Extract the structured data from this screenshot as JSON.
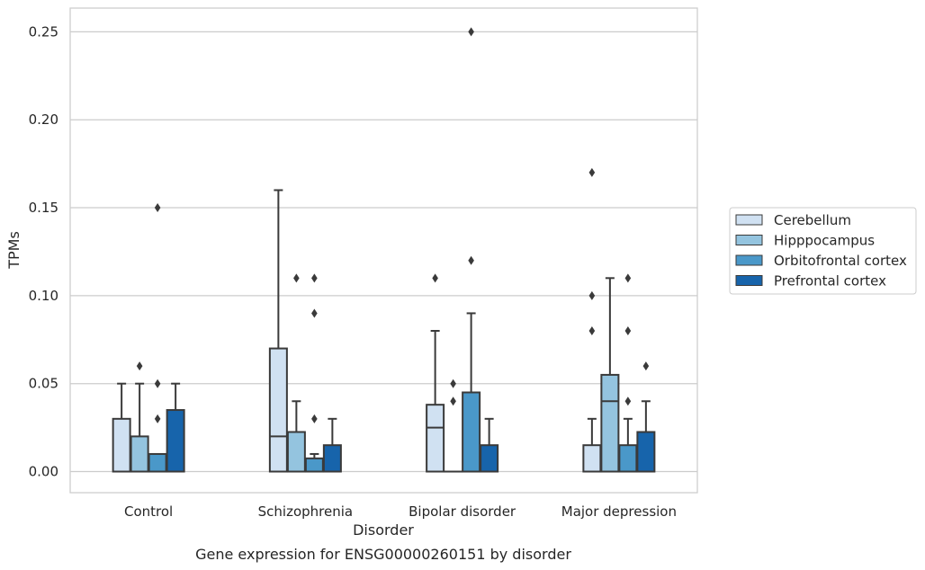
{
  "caption": "Gene expression for ENSG00000260151 by disorder",
  "chart_data": {
    "type": "box",
    "xlabel": "Disorder",
    "ylabel": "TPMs",
    "ylim": [
      -0.012,
      0.2635
    ],
    "yticks": [
      0.0,
      0.05,
      0.1,
      0.15,
      0.2,
      0.25
    ],
    "ytick_labels": [
      "0.00",
      "0.05",
      "0.10",
      "0.15",
      "0.20",
      "0.25"
    ],
    "grid": "horizontal",
    "legend_position": "right",
    "categories": [
      "Control",
      "Schizophrenia",
      "Bipolar disorder",
      "Major depression"
    ],
    "series": [
      {
        "name": "Cerebellum",
        "color": "#d0e1f2",
        "boxes": [
          {
            "q1": 0.0,
            "median": 0.0,
            "q3": 0.03,
            "whisker_low": 0.0,
            "whisker_high": 0.05,
            "outliers": []
          },
          {
            "q1": 0.0,
            "median": 0.02,
            "q3": 0.07,
            "whisker_low": 0.0,
            "whisker_high": 0.16,
            "outliers": []
          },
          {
            "q1": 0.0,
            "median": 0.025,
            "q3": 0.038,
            "whisker_low": 0.0,
            "whisker_high": 0.08,
            "outliers": [
              0.11
            ]
          },
          {
            "q1": 0.0,
            "median": 0.0,
            "q3": 0.015,
            "whisker_low": 0.0,
            "whisker_high": 0.03,
            "outliers": [
              0.08,
              0.1,
              0.17
            ]
          }
        ]
      },
      {
        "name": "Hipppocampus",
        "color": "#94c4df",
        "boxes": [
          {
            "q1": 0.0,
            "median": 0.0,
            "q3": 0.02,
            "whisker_low": 0.0,
            "whisker_high": 0.05,
            "outliers": [
              0.06
            ]
          },
          {
            "q1": 0.0,
            "median": 0.0,
            "q3": 0.0225,
            "whisker_low": 0.0,
            "whisker_high": 0.04,
            "outliers": [
              0.11
            ]
          },
          {
            "q1": 0.0,
            "median": 0.0,
            "q3": 0.0,
            "whisker_low": 0.0,
            "whisker_high": 0.0,
            "outliers": [
              0.04,
              0.05
            ]
          },
          {
            "q1": 0.0,
            "median": 0.04,
            "q3": 0.055,
            "whisker_low": 0.0,
            "whisker_high": 0.11,
            "outliers": []
          }
        ]
      },
      {
        "name": "Orbitofrontal cortex",
        "color": "#4a98c9",
        "boxes": [
          {
            "q1": 0.0,
            "median": 0.0,
            "q3": 0.01,
            "whisker_low": 0.0,
            "whisker_high": 0.01,
            "outliers": [
              0.03,
              0.05,
              0.15
            ]
          },
          {
            "q1": 0.0,
            "median": 0.0,
            "q3": 0.0075,
            "whisker_low": 0.0,
            "whisker_high": 0.01,
            "outliers": [
              0.03,
              0.09,
              0.11
            ]
          },
          {
            "q1": 0.0,
            "median": 0.0,
            "q3": 0.045,
            "whisker_low": 0.0,
            "whisker_high": 0.09,
            "outliers": [
              0.12,
              0.25
            ]
          },
          {
            "q1": 0.0,
            "median": 0.0,
            "q3": 0.015,
            "whisker_low": 0.0,
            "whisker_high": 0.03,
            "outliers": [
              0.04,
              0.08,
              0.11
            ]
          }
        ]
      },
      {
        "name": "Prefrontal cortex",
        "color": "#1764ab",
        "boxes": [
          {
            "q1": 0.0,
            "median": 0.0,
            "q3": 0.035,
            "whisker_low": 0.0,
            "whisker_high": 0.05,
            "outliers": []
          },
          {
            "q1": 0.0,
            "median": 0.0,
            "q3": 0.015,
            "whisker_low": 0.0,
            "whisker_high": 0.03,
            "outliers": []
          },
          {
            "q1": 0.0,
            "median": 0.0,
            "q3": 0.015,
            "whisker_low": 0.0,
            "whisker_high": 0.03,
            "outliers": []
          },
          {
            "q1": 0.0,
            "median": 0.0,
            "q3": 0.0225,
            "whisker_low": 0.0,
            "whisker_high": 0.04,
            "outliers": [
              0.06
            ]
          }
        ]
      }
    ]
  }
}
